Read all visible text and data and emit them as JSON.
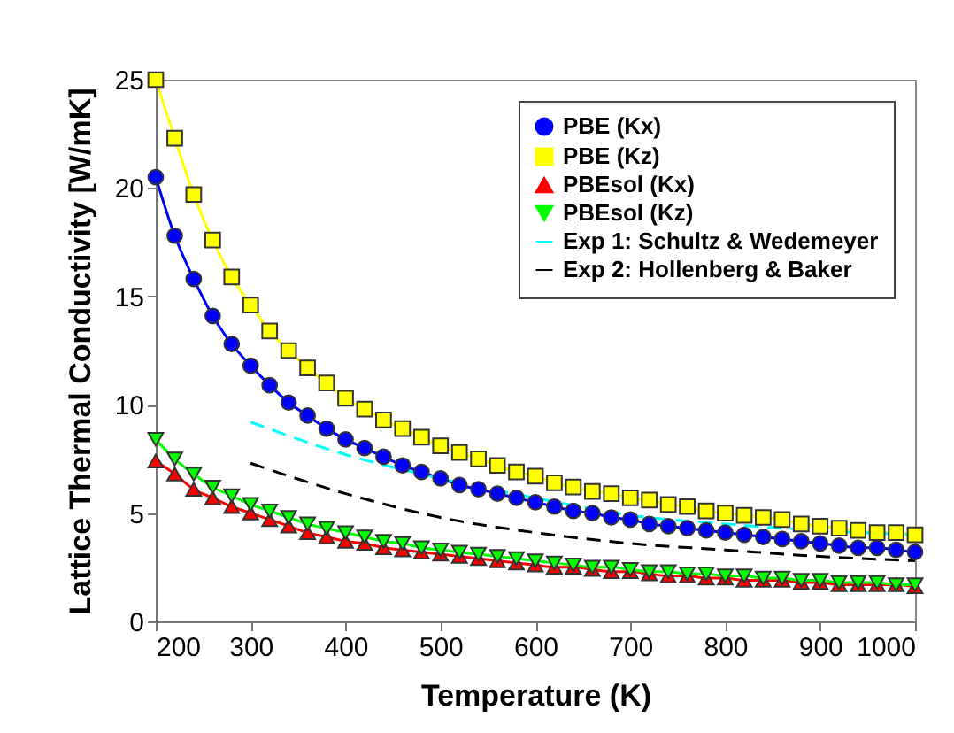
{
  "chart_data": {
    "type": "line",
    "xlabel": "Temperature (K)",
    "ylabel": "Lattice Thermal Conductivity [W/mK]",
    "xlim": [
      200,
      1000
    ],
    "xticks": [
      200,
      300,
      400,
      500,
      600,
      700,
      800,
      900,
      1000
    ],
    "ylim": [
      0,
      25
    ],
    "yticks": [
      0,
      5,
      10,
      15,
      20,
      25
    ],
    "grid": false,
    "legend": "top right",
    "x": [
      200,
      220,
      240,
      260,
      280,
      300,
      320,
      340,
      360,
      380,
      400,
      420,
      440,
      460,
      480,
      500,
      520,
      540,
      560,
      580,
      600,
      620,
      640,
      660,
      680,
      700,
      720,
      740,
      760,
      780,
      800,
      820,
      840,
      860,
      880,
      900,
      920,
      940,
      960,
      980,
      1000
    ],
    "series": [
      {
        "name": "PBE (Kx)",
        "color": "#0000ff",
        "marker": "circle",
        "line_style": "solid",
        "values": [
          20.5,
          17.8,
          15.8,
          14.1,
          12.8,
          11.8,
          10.9,
          10.1,
          9.5,
          8.9,
          8.4,
          8.0,
          7.6,
          7.2,
          6.9,
          6.6,
          6.3,
          6.1,
          5.9,
          5.7,
          5.5,
          5.3,
          5.1,
          5.0,
          4.8,
          4.7,
          4.5,
          4.4,
          4.3,
          4.2,
          4.1,
          4.0,
          3.9,
          3.8,
          3.7,
          3.6,
          3.5,
          3.4,
          3.4,
          3.3,
          3.2
        ]
      },
      {
        "name": "PBE (Kz)",
        "color": "#ffff00",
        "marker": "square",
        "line_style": "solid",
        "values": [
          25.0,
          22.3,
          19.7,
          17.6,
          15.9,
          14.6,
          13.4,
          12.5,
          11.7,
          11.0,
          10.3,
          9.8,
          9.3,
          8.9,
          8.5,
          8.1,
          7.8,
          7.5,
          7.2,
          6.9,
          6.7,
          6.4,
          6.2,
          6.0,
          5.9,
          5.7,
          5.6,
          5.4,
          5.3,
          5.1,
          5.0,
          4.9,
          4.8,
          4.7,
          4.5,
          4.4,
          4.3,
          4.2,
          4.1,
          4.1,
          4.0
        ]
      },
      {
        "name": "PBEsol (Kx)",
        "color": "#ff0000",
        "marker": "triangle",
        "line_style": "solid",
        "values": [
          7.4,
          6.8,
          6.1,
          5.7,
          5.3,
          5.0,
          4.7,
          4.4,
          4.1,
          3.9,
          3.7,
          3.6,
          3.4,
          3.3,
          3.2,
          3.1,
          3.0,
          2.9,
          2.8,
          2.7,
          2.6,
          2.5,
          2.5,
          2.4,
          2.3,
          2.3,
          2.2,
          2.1,
          2.1,
          2.0,
          2.0,
          1.9,
          1.9,
          1.9,
          1.8,
          1.8,
          1.7,
          1.7,
          1.7,
          1.7,
          1.6
        ]
      },
      {
        "name": "PBEsol (Kz)",
        "color": "#00ff00",
        "marker": "triangle-down",
        "line_style": "solid",
        "values": [
          8.4,
          7.5,
          6.8,
          6.2,
          5.8,
          5.4,
          5.1,
          4.8,
          4.5,
          4.3,
          4.1,
          3.9,
          3.7,
          3.6,
          3.4,
          3.3,
          3.2,
          3.1,
          3.0,
          2.9,
          2.8,
          2.7,
          2.6,
          2.5,
          2.5,
          2.4,
          2.3,
          2.3,
          2.2,
          2.2,
          2.1,
          2.1,
          2.0,
          2.0,
          1.9,
          1.9,
          1.8,
          1.8,
          1.8,
          1.7,
          1.7
        ]
      },
      {
        "name": "Exp 1: Schultz & Wedemeyer",
        "color": "#00ffff",
        "marker": "none",
        "line_style": "dashed",
        "x": [
          300,
          400,
          500,
          600,
          700,
          800,
          900,
          1000
        ],
        "values": [
          9.2,
          7.7,
          6.6,
          5.7,
          4.9,
          4.5,
          4.2,
          4.0
        ]
      },
      {
        "name": "Exp 2:  Hollenberg & Baker",
        "color": "#000000",
        "marker": "none",
        "line_style": "dashed",
        "x": [
          300,
          400,
          500,
          600,
          700,
          800,
          900,
          1000
        ],
        "values": [
          7.3,
          5.9,
          4.8,
          4.1,
          3.6,
          3.3,
          3.0,
          2.8
        ]
      }
    ]
  }
}
